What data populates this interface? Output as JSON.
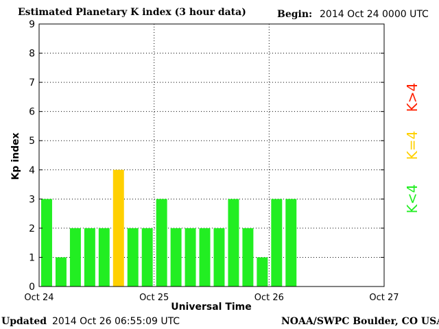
{
  "header": {
    "title": "Estimated Planetary K index (3 hour data)",
    "begin_label": "Begin:",
    "begin_value": "2014 Oct 24 0000 UTC"
  },
  "footer": {
    "updated_label": "Updated",
    "updated_value": "2014 Oct 26 06:55:09 UTC",
    "credit": "NOAA/SWPC Boulder, CO USA"
  },
  "legend": [
    {
      "label": "K<4",
      "color": "#22ee22"
    },
    {
      "label": "K=4",
      "color": "#ffd000"
    },
    {
      "label": "K>4",
      "color": "#ff2000"
    }
  ],
  "chart_data": {
    "type": "bar",
    "title": "Estimated Planetary K index (3 hour data)",
    "xlabel": "Universal Time",
    "ylabel": "Kp index",
    "ylim": [
      0,
      9
    ],
    "yticks": [
      0,
      1,
      2,
      3,
      4,
      5,
      6,
      7,
      8,
      9
    ],
    "xtick_labels": [
      "Oct 24",
      "Oct 25",
      "Oct 26",
      "Oct 27"
    ],
    "slots_per_day": 8,
    "grid": true,
    "values": [
      3,
      1,
      2,
      2,
      2,
      4,
      2,
      2,
      3,
      2,
      2,
      2,
      2,
      3,
      2,
      1,
      3,
      3
    ],
    "colors": {
      "below_4": "#22ee22",
      "equal_4": "#ffd000",
      "above_4": "#ff2000"
    }
  }
}
